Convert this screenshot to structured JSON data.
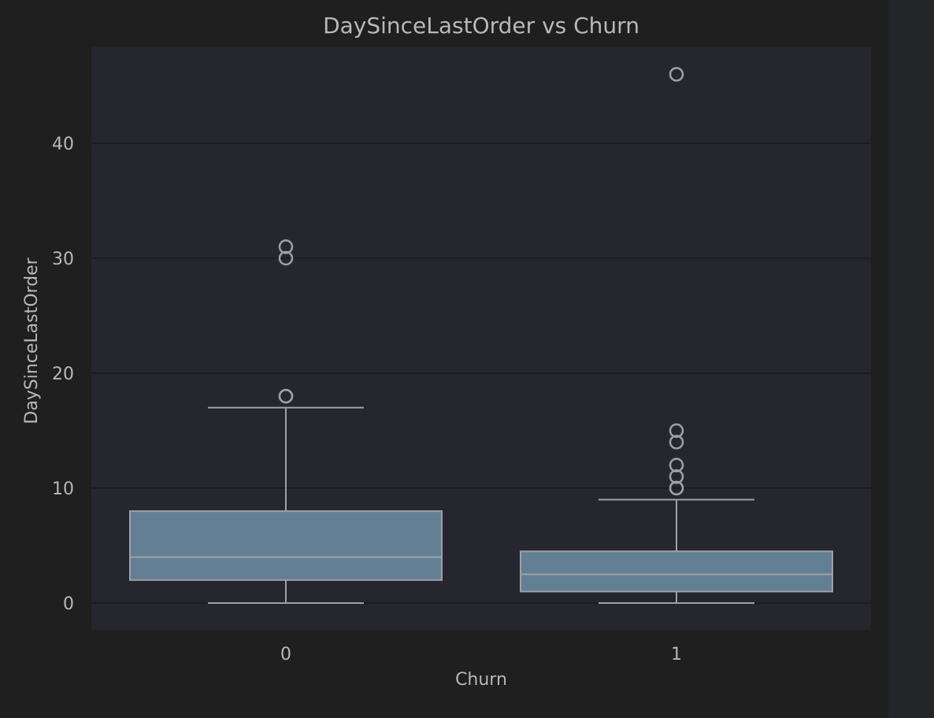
{
  "chart_data": {
    "type": "box",
    "title": "DaySinceLastOrder vs Churn",
    "xlabel": "Churn",
    "ylabel": "DaySinceLastOrder",
    "categories": [
      "0",
      "1"
    ],
    "ylim": [
      -2.3,
      48.3
    ],
    "yticks": [
      0,
      10,
      20,
      30,
      40
    ],
    "grid": true,
    "colors": {
      "background": "#1f1f1f",
      "plot_area": "#26262f",
      "box_fill": "#627f94",
      "line": "#a0a0a4",
      "grid": "#1b1b22",
      "text": "#b8b8b8"
    },
    "boxes": [
      {
        "category": "0",
        "whisker_low": 0,
        "q1": 2,
        "median": 4,
        "q3": 8,
        "whisker_high": 17,
        "outliers": [
          18,
          18,
          30,
          31
        ]
      },
      {
        "category": "1",
        "whisker_low": 0,
        "q1": 1,
        "median": 2.5,
        "q3": 4.5,
        "whisker_high": 9,
        "outliers": [
          10,
          10,
          11,
          12,
          14,
          15,
          46
        ]
      }
    ]
  }
}
